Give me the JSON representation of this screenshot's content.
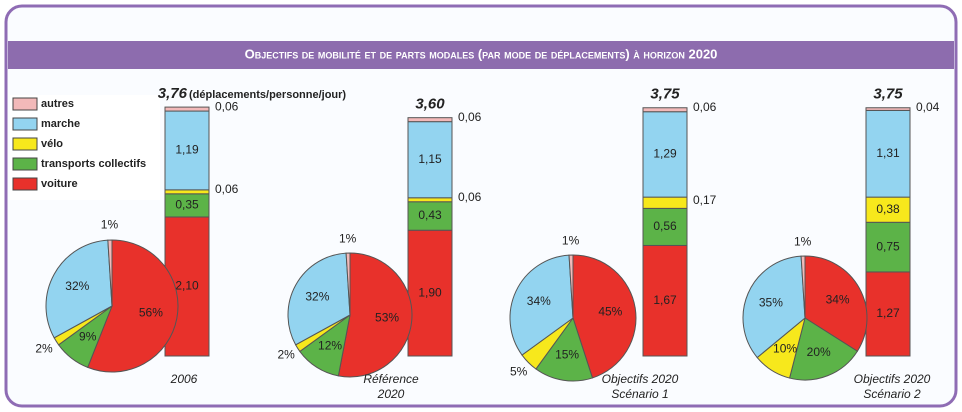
{
  "title": "Objectifs de mobilité et de parts modales (par mode de déplacements) à horizon 2020",
  "unit": "(déplacements/personne/jour)",
  "legend": {
    "names": [
      "voiture",
      "transports collectifs",
      "vélo",
      "marche",
      "autres"
    ],
    "colors": [
      "#e8312b",
      "#5cb348",
      "#f7e81c",
      "#93d4f0",
      "#f2b9b9"
    ]
  },
  "chart_data": [
    {
      "type": "combo",
      "caption": [
        "2006"
      ],
      "total": {
        "value": 3.76,
        "label": "3,76"
      },
      "bar": {
        "values": [
          2.1,
          0.35,
          0.06,
          1.19,
          0.06
        ],
        "value_labels": [
          "2,10",
          "0,35",
          "0,06",
          "1,19",
          "0,06"
        ]
      },
      "pie": {
        "values": [
          56,
          9,
          2,
          32,
          1
        ],
        "value_labels": [
          "56%",
          "9%",
          "2%",
          "32%",
          "1%"
        ]
      }
    },
    {
      "type": "combo",
      "caption": [
        "Référence",
        "2020"
      ],
      "total": {
        "value": 3.6,
        "label": "3,60"
      },
      "bar": {
        "values": [
          1.9,
          0.43,
          0.06,
          1.15,
          0.06
        ],
        "value_labels": [
          "1,90",
          "0,43",
          "0,06",
          "1,15",
          "0,06"
        ]
      },
      "pie": {
        "values": [
          53,
          12,
          2,
          32,
          1
        ],
        "value_labels": [
          "53%",
          "12%",
          "2%",
          "32%",
          "1%"
        ]
      }
    },
    {
      "type": "combo",
      "caption": [
        "Objectifs 2020",
        "Scénario 1"
      ],
      "total": {
        "value": 3.75,
        "label": "3,75"
      },
      "bar": {
        "values": [
          1.67,
          0.56,
          0.17,
          1.29,
          0.06
        ],
        "value_labels": [
          "1,67",
          "0,56",
          "0,17",
          "1,29",
          "0,06"
        ]
      },
      "pie": {
        "values": [
          45,
          15,
          5,
          34,
          1
        ],
        "value_labels": [
          "45%",
          "15%",
          "5%",
          "34%",
          "1%"
        ]
      }
    },
    {
      "type": "combo",
      "caption": [
        "Objectifs 2020",
        "Scénario 2"
      ],
      "total": {
        "value": 3.75,
        "label": "3,75"
      },
      "bar": {
        "values": [
          1.27,
          0.75,
          0.38,
          1.31,
          0.04
        ],
        "value_labels": [
          "1,27",
          "0,75",
          "0,38",
          "1,31",
          "0,04"
        ]
      },
      "pie": {
        "values": [
          34,
          20,
          10,
          35,
          1
        ],
        "value_labels": [
          "34%",
          "20%",
          "10%",
          "35%",
          "1%"
        ]
      }
    }
  ]
}
